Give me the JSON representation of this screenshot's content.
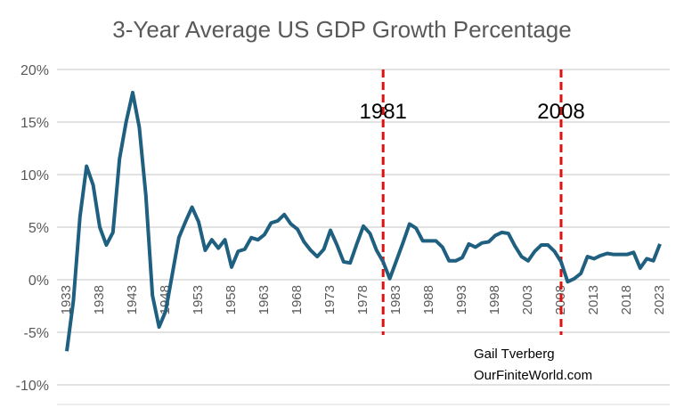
{
  "chart_data": {
    "type": "line",
    "title": "3-Year Average US GDP Growth Percentage",
    "xlabel": "",
    "ylabel": "",
    "ylim": [
      -10,
      20
    ],
    "yticks": [
      "20%",
      "15%",
      "10%",
      "5%",
      "0%",
      "-5%",
      "-10%"
    ],
    "ytick_values": [
      20,
      15,
      10,
      5,
      0,
      -5,
      -10
    ],
    "xticks": [
      "1933",
      "1938",
      "1943",
      "1948",
      "1953",
      "1958",
      "1963",
      "1968",
      "1973",
      "1978",
      "1983",
      "1988",
      "1993",
      "1998",
      "2003",
      "2008",
      "2013",
      "2018",
      "2023"
    ],
    "grid": "horizontal",
    "line_color": "#1f5f7f",
    "x_start": 1933,
    "values": [
      -6.8,
      -2,
      6,
      10.8,
      9,
      5,
      3.3,
      4.5,
      11.5,
      15,
      17.8,
      14.5,
      8,
      -1.5,
      -4.5,
      -3,
      0.5,
      4,
      5.5,
      6.9,
      5.5,
      2.8,
      3.8,
      3,
      3.8,
      1.2,
      2.7,
      2.9,
      4,
      3.8,
      4.3,
      5.4,
      5.6,
      6.2,
      5.3,
      4.8,
      3.6,
      2.8,
      2.2,
      2.9,
      4.7,
      3.3,
      1.7,
      1.6,
      3.4,
      5.1,
      4.4,
      2.8,
      1.7,
      0.1,
      1.8,
      3.5,
      5.3,
      4.9,
      3.7,
      3.7,
      3.7,
      3.1,
      1.8,
      1.8,
      2.1,
      3.4,
      3.1,
      3.5,
      3.6,
      4.2,
      4.5,
      4.4,
      3.2,
      2.2,
      1.8,
      2.7,
      3.3,
      3.3,
      2.7,
      1.7,
      -0.2,
      0.1,
      0.6,
      2.2,
      2.0,
      2.3,
      2.5,
      2.4,
      2.4,
      2.4,
      2.6,
      1.1,
      2.0,
      1.8,
      3.4
    ],
    "annotations": [
      {
        "x": 1981,
        "label": "1981",
        "style": "dashed-vertical",
        "color": "#e01010"
      },
      {
        "x": 2008,
        "label": "2008",
        "style": "dashed-vertical",
        "color": "#e01010"
      }
    ]
  },
  "signature": {
    "line1": "Gail Tverberg",
    "line2": "OurFiniteWorld.com"
  }
}
